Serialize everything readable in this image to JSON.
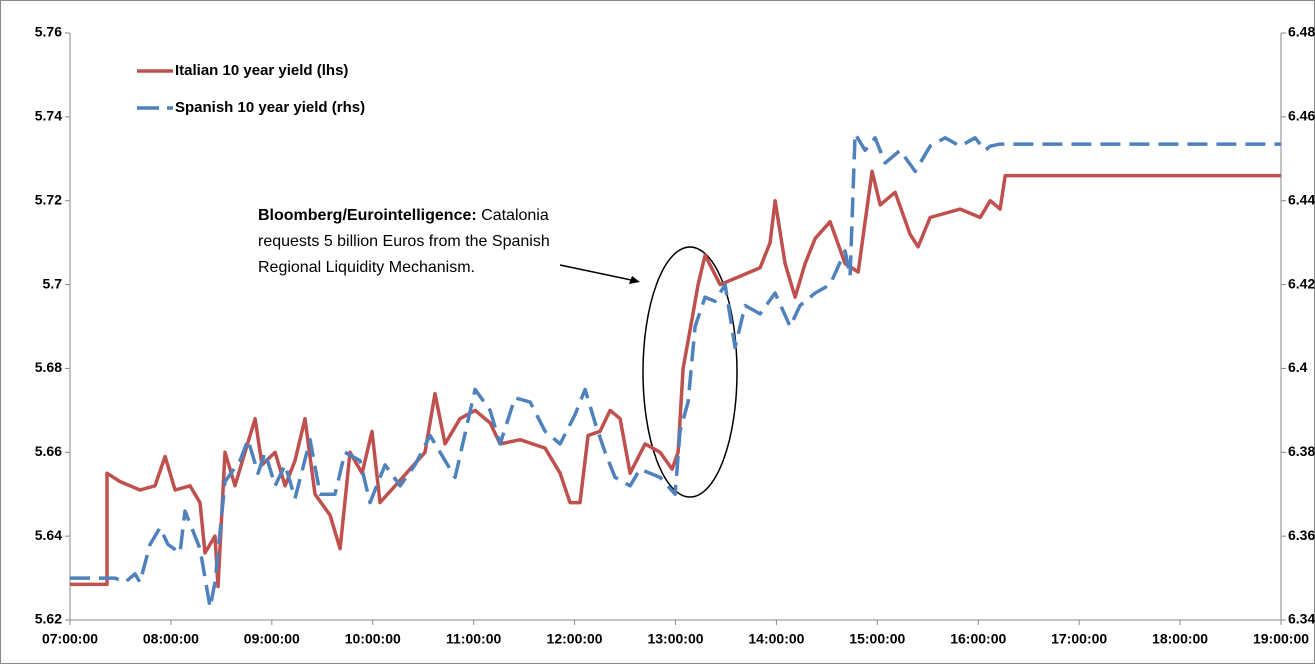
{
  "chart_data": {
    "type": "line",
    "xlim": [
      7,
      19
    ],
    "xticks": [
      {
        "value": 7,
        "label": "07:00:00"
      },
      {
        "value": 8,
        "label": "08:00:00"
      },
      {
        "value": 9,
        "label": "09:00:00"
      },
      {
        "value": 10,
        "label": "10:00:00"
      },
      {
        "value": 11,
        "label": "11:00:00"
      },
      {
        "value": 12,
        "label": "12:00:00"
      },
      {
        "value": 13,
        "label": "13:00:00"
      },
      {
        "value": 14,
        "label": "14:00:00"
      },
      {
        "value": 15,
        "label": "15:00:00"
      },
      {
        "value": 16,
        "label": "16:00:00"
      },
      {
        "value": 17,
        "label": "17:00:00"
      },
      {
        "value": 18,
        "label": "18:00:00"
      },
      {
        "value": 19,
        "label": "19:00:00"
      }
    ],
    "ylim": [
      5.62,
      5.76
    ],
    "yticks": [
      5.62,
      5.64,
      5.66,
      5.68,
      5.7,
      5.72,
      5.74,
      5.76
    ],
    "y2lim": [
      6.34,
      6.48
    ],
    "y2ticks": [
      6.34,
      6.36,
      6.38,
      6.4,
      6.42,
      6.44,
      6.46,
      6.48
    ],
    "legend": "top-left",
    "annotation": {
      "bold": "Bloomberg/Eurointelligence:",
      "lines": [
        "Catalonia",
        "requests 5 billion Euros from the Spanish",
        "Regional Liquidity Mechanism."
      ]
    },
    "series": [
      {
        "name": "Italian 10 year yield (lhs)",
        "color": "#c0504d",
        "dashed": false,
        "x": [
          7,
          7.367,
          7.367,
          7.496,
          7.694,
          7.842,
          7.942,
          8.041,
          8.189,
          8.288,
          8.338,
          8.437,
          8.467,
          8.536,
          8.635,
          8.734,
          8.834,
          8.903,
          9.032,
          9.131,
          9.23,
          9.329,
          9.428,
          9.577,
          9.676,
          9.775,
          9.894,
          9.993,
          10.072,
          10.221,
          10.37,
          10.518,
          10.617,
          10.717,
          10.865,
          11.014,
          11.163,
          11.262,
          11.46,
          11.708,
          11.856,
          11.955,
          12.054,
          12.134,
          12.253,
          12.352,
          12.451,
          12.55,
          12.699,
          12.847,
          12.966,
          13.026,
          13.075,
          13.165,
          13.224,
          13.293,
          13.442,
          13.64,
          13.838,
          13.937,
          13.987,
          14.086,
          14.185,
          14.284,
          14.384,
          14.532,
          14.681,
          14.81,
          14.879,
          14.948,
          15.028,
          15.176,
          15.325,
          15.404,
          15.523,
          15.821,
          16.019,
          16.118,
          16.217,
          16.267,
          19
        ],
        "values": [
          5.6285,
          5.6285,
          5.655,
          5.653,
          5.651,
          5.652,
          5.659,
          5.651,
          5.652,
          5.648,
          5.636,
          5.64,
          5.628,
          5.66,
          5.652,
          5.66,
          5.668,
          5.657,
          5.66,
          5.652,
          5.658,
          5.668,
          5.65,
          5.645,
          5.637,
          5.66,
          5.655,
          5.665,
          5.648,
          5.652,
          5.656,
          5.66,
          5.674,
          5.662,
          5.668,
          5.67,
          5.667,
          5.662,
          5.663,
          5.661,
          5.655,
          5.648,
          5.648,
          5.664,
          5.665,
          5.67,
          5.668,
          5.655,
          5.662,
          5.66,
          5.656,
          5.66,
          5.68,
          5.692,
          5.7,
          5.707,
          5.7,
          5.702,
          5.704,
          5.71,
          5.72,
          5.705,
          5.697,
          5.705,
          5.711,
          5.715,
          5.705,
          5.703,
          5.715,
          5.727,
          5.719,
          5.722,
          5.712,
          5.709,
          5.716,
          5.718,
          5.716,
          5.72,
          5.718,
          5.726,
          5.726
        ]
      },
      {
        "name": "Spanish 10 year yield (rhs)",
        "color": "#4f81bd",
        "dashed": true,
        "axis": "y2",
        "x": [
          7,
          7.347,
          7.446,
          7.545,
          7.644,
          7.694,
          7.793,
          7.892,
          7.971,
          8.09,
          8.14,
          8.239,
          8.288,
          8.388,
          8.437,
          8.536,
          8.685,
          8.764,
          8.863,
          8.933,
          9.032,
          9.131,
          9.23,
          9.379,
          9.478,
          9.626,
          9.725,
          9.874,
          9.973,
          10.122,
          10.271,
          10.419,
          10.568,
          10.667,
          10.816,
          11.014,
          11.163,
          11.262,
          11.41,
          11.559,
          11.708,
          11.856,
          12.005,
          12.104,
          12.203,
          12.302,
          12.401,
          12.55,
          12.649,
          12.847,
          12.996,
          13.045,
          13.125,
          13.194,
          13.293,
          13.392,
          13.491,
          13.591,
          13.69,
          13.838,
          13.987,
          14.136,
          14.235,
          14.384,
          14.532,
          14.681,
          14.73,
          14.78,
          14.879,
          14.978,
          15.077,
          15.226,
          15.375,
          15.523,
          15.672,
          15.821,
          15.969,
          16.068,
          16.118,
          16.217,
          19
        ],
        "values": [
          6.35,
          6.35,
          6.35,
          6.349,
          6.351,
          6.349,
          6.358,
          6.362,
          6.358,
          6.356,
          6.366,
          6.36,
          6.357,
          6.343,
          6.349,
          6.373,
          6.378,
          6.383,
          6.375,
          6.38,
          6.372,
          6.377,
          6.369,
          6.383,
          6.37,
          6.37,
          6.38,
          6.378,
          6.368,
          6.377,
          6.372,
          6.377,
          6.384,
          6.38,
          6.374,
          6.395,
          6.39,
          6.382,
          6.393,
          6.392,
          6.385,
          6.382,
          6.389,
          6.395,
          6.387,
          6.38,
          6.374,
          6.372,
          6.376,
          6.374,
          6.37,
          6.385,
          6.392,
          6.41,
          6.417,
          6.416,
          6.42,
          6.405,
          6.415,
          6.413,
          6.418,
          6.41,
          6.415,
          6.418,
          6.42,
          6.428,
          6.422,
          6.456,
          6.452,
          6.455,
          6.449,
          6.452,
          6.447,
          6.453,
          6.455,
          6.453,
          6.455,
          6.452,
          6.453,
          6.4535,
          6.4535
        ]
      }
    ]
  }
}
